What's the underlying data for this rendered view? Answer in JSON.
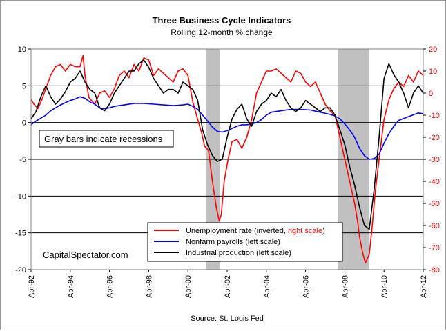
{
  "chart_data": {
    "type": "line",
    "title": "Three Business Cycle Indicators",
    "subtitle": "Rolling 12-month % change",
    "source": "Source: St. Louis Fed",
    "watermark": "CapitalSpectator.com",
    "annotation": "Gray bars indicate recessions",
    "left_axis": {
      "range": [
        -20,
        10
      ],
      "ticks": [
        "10",
        "5",
        "0",
        "-5",
        "-10",
        "-15",
        "-20"
      ]
    },
    "right_axis": {
      "range": [
        -80,
        20
      ],
      "ticks": [
        "20",
        "10",
        "0",
        "-10",
        "-20",
        "-30",
        "-40",
        "-50",
        "-60",
        "-70",
        "-80"
      ],
      "color": "#ff0000"
    },
    "x_range": [
      1992.25,
      2012.25
    ],
    "x_ticks": [
      {
        "label": "Apr-92",
        "x": 1992.25
      },
      {
        "label": "Apr-94",
        "x": 1994.25
      },
      {
        "label": "Apr-96",
        "x": 1996.25
      },
      {
        "label": "Apr-98",
        "x": 1998.25
      },
      {
        "label": "Apr-00",
        "x": 2000.25
      },
      {
        "label": "Apr-02",
        "x": 2002.25
      },
      {
        "label": "Apr-04",
        "x": 2004.25
      },
      {
        "label": "Apr-06",
        "x": 2006.25
      },
      {
        "label": "Apr-08",
        "x": 2008.25
      },
      {
        "label": "Apr-10",
        "x": 2010.25
      },
      {
        "label": "Apr-12",
        "x": 2012.25
      }
    ],
    "grid": "horizontal",
    "recessions": [
      {
        "start": 2001.17,
        "end": 2001.87
      },
      {
        "start": 2007.92,
        "end": 2009.5
      }
    ],
    "legend": {
      "placement": "bottom-center",
      "entries": [
        {
          "series": 0,
          "text": "Unemployment rate (inverted, ",
          "highlight": "right scale",
          "suffix": ")"
        },
        {
          "series": 1,
          "text": "Nonfarm payrolls (left scale)"
        },
        {
          "series": 2,
          "text": "Industrial production (left scale)"
        }
      ]
    },
    "series": [
      {
        "axis": "right",
        "color": "#ff0000",
        "x": [
          1992.25,
          1992.4,
          1992.6,
          1992.8,
          1993.0,
          1993.25,
          1993.5,
          1993.75,
          1994.0,
          1994.25,
          1994.5,
          1994.75,
          1994.9,
          1995.0,
          1995.2,
          1995.5,
          1995.75,
          1996.0,
          1996.25,
          1996.5,
          1996.75,
          1997.0,
          1997.25,
          1997.5,
          1997.75,
          1998.0,
          1998.25,
          1998.5,
          1998.75,
          1999.0,
          1999.25,
          1999.5,
          1999.75,
          2000.0,
          2000.25,
          2000.5,
          2000.75,
          2000.95,
          2001.1,
          2001.3,
          2001.5,
          2001.7,
          2001.85,
          2001.95,
          2002.1,
          2002.3,
          2002.5,
          2002.75,
          2003.0,
          2003.25,
          2003.5,
          2003.75,
          2004.0,
          2004.25,
          2004.5,
          2004.75,
          2005.0,
          2005.25,
          2005.5,
          2005.75,
          2006.0,
          2006.25,
          2006.5,
          2006.75,
          2007.0,
          2007.25,
          2007.5,
          2007.75,
          2008.0,
          2008.25,
          2008.5,
          2008.75,
          2008.9,
          2009.0,
          2009.15,
          2009.3,
          2009.5,
          2009.65,
          2009.8,
          2010.0,
          2010.25,
          2010.5,
          2010.75,
          2011.0,
          2011.25,
          2011.5,
          2011.75,
          2012.0,
          2012.25
        ],
        "values": [
          -3,
          -5,
          -7,
          -3,
          2,
          8,
          12,
          13,
          10,
          13,
          12,
          12,
          17,
          8,
          -2,
          -5,
          0,
          1,
          -2,
          2,
          8,
          10,
          7,
          13,
          10,
          16,
          15,
          8,
          11,
          9,
          7,
          5,
          10,
          11,
          8,
          -4,
          -12,
          -18,
          -24,
          -26,
          -40,
          -52,
          -58,
          -55,
          -40,
          -30,
          -22,
          -21,
          -25,
          -20,
          -12,
          0,
          5,
          10,
          10,
          11,
          9,
          7,
          5,
          10,
          9,
          5,
          3,
          5,
          0,
          -5,
          -8,
          -10,
          -20,
          -30,
          -40,
          -50,
          -58,
          -65,
          -72,
          -77,
          -73,
          -60,
          -45,
          -30,
          -12,
          -3,
          2,
          5,
          3,
          8,
          5,
          10,
          8
        ]
      },
      {
        "axis": "left",
        "color": "#0000ff",
        "x": [
          1992.25,
          1992.5,
          1992.75,
          1993.0,
          1993.25,
          1993.5,
          1993.75,
          1994.0,
          1994.25,
          1994.5,
          1994.75,
          1995.0,
          1995.25,
          1995.5,
          1995.75,
          1996.0,
          1996.25,
          1996.5,
          1996.75,
          1997.0,
          1997.5,
          1998.0,
          1998.5,
          1999.0,
          1999.5,
          2000.0,
          2000.25,
          2000.5,
          2000.75,
          2001.0,
          2001.25,
          2001.5,
          2001.75,
          2002.0,
          2002.25,
          2002.5,
          2002.75,
          2003.0,
          2003.25,
          2003.5,
          2003.75,
          2004.0,
          2004.25,
          2004.5,
          2005.0,
          2005.5,
          2006.0,
          2006.5,
          2007.0,
          2007.5,
          2007.75,
          2008.0,
          2008.25,
          2008.5,
          2008.75,
          2009.0,
          2009.25,
          2009.5,
          2009.75,
          2010.0,
          2010.25,
          2010.5,
          2010.75,
          2011.0,
          2011.5,
          2012.0,
          2012.25
        ],
        "values": [
          -0.3,
          0.2,
          0.6,
          1.0,
          1.6,
          2.0,
          2.4,
          2.7,
          3.0,
          3.2,
          3.5,
          3.3,
          2.8,
          2.5,
          2.0,
          1.9,
          2.0,
          2.2,
          2.3,
          2.4,
          2.6,
          2.6,
          2.5,
          2.4,
          2.3,
          2.4,
          2.5,
          2.2,
          1.8,
          1.0,
          0.2,
          -0.6,
          -1.2,
          -1.3,
          -1.1,
          -0.8,
          -0.5,
          -0.3,
          -0.3,
          -0.2,
          0.0,
          0.4,
          1.0,
          1.4,
          1.6,
          1.8,
          1.8,
          1.7,
          1.4,
          1.1,
          0.9,
          0.5,
          -0.2,
          -1.0,
          -2.0,
          -3.5,
          -4.5,
          -5.0,
          -4.9,
          -4.3,
          -2.8,
          -1.5,
          -0.5,
          0.3,
          0.8,
          1.3,
          1.2
        ]
      },
      {
        "axis": "left",
        "color": "#000000",
        "x": [
          1992.25,
          1992.5,
          1992.75,
          1993.0,
          1993.25,
          1993.5,
          1993.75,
          1994.0,
          1994.25,
          1994.5,
          1994.75,
          1995.0,
          1995.25,
          1995.5,
          1995.75,
          1996.0,
          1996.25,
          1996.5,
          1996.75,
          1997.0,
          1997.25,
          1997.5,
          1997.75,
          1998.0,
          1998.25,
          1998.5,
          1998.75,
          1999.0,
          1999.25,
          1999.5,
          1999.75,
          2000.0,
          2000.25,
          2000.5,
          2000.75,
          2001.0,
          2001.25,
          2001.5,
          2001.75,
          2002.0,
          2002.25,
          2002.5,
          2002.75,
          2003.0,
          2003.25,
          2003.5,
          2003.75,
          2004.0,
          2004.25,
          2004.5,
          2004.75,
          2005.0,
          2005.25,
          2005.5,
          2005.75,
          2006.0,
          2006.25,
          2006.5,
          2006.75,
          2007.0,
          2007.25,
          2007.5,
          2007.75,
          2008.0,
          2008.25,
          2008.5,
          2008.75,
          2009.0,
          2009.25,
          2009.5,
          2009.75,
          2010.0,
          2010.25,
          2010.5,
          2010.75,
          2011.0,
          2011.25,
          2011.5,
          2011.75,
          2012.0,
          2012.25
        ],
        "values": [
          0.5,
          1.5,
          3.5,
          5.0,
          3.5,
          2.5,
          3.2,
          4.2,
          5.5,
          6.0,
          7.0,
          5.5,
          4.5,
          4.0,
          2.0,
          1.6,
          2.5,
          4.0,
          5.0,
          6.0,
          7.0,
          7.0,
          8.0,
          8.5,
          7.5,
          6.0,
          5.0,
          4.0,
          4.5,
          4.5,
          4.0,
          5.5,
          5.0,
          4.5,
          3.0,
          -1.0,
          -3.0,
          -4.5,
          -5.3,
          -5.0,
          -2.0,
          0.5,
          1.8,
          2.5,
          0.5,
          -0.5,
          1.5,
          2.5,
          3.0,
          4.0,
          3.5,
          4.5,
          3.0,
          2.0,
          1.5,
          2.0,
          3.0,
          2.5,
          2.0,
          1.5,
          2.0,
          2.0,
          1.0,
          -1.0,
          -3.0,
          -6.0,
          -8.5,
          -11.5,
          -14.0,
          -14.5,
          -9.0,
          -2.0,
          6.0,
          8.0,
          6.5,
          5.5,
          4.0,
          2.0,
          4.0,
          5.0,
          4.0
        ]
      }
    ]
  }
}
